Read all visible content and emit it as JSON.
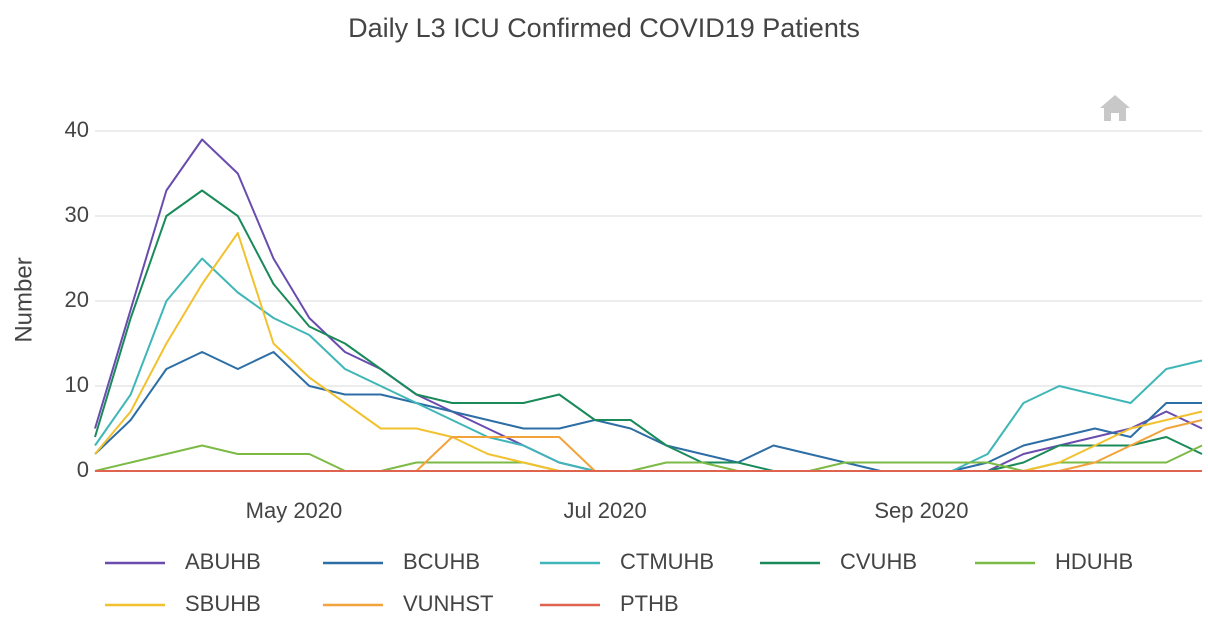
{
  "chart_data": {
    "type": "line",
    "title": "Daily L3 ICU Confirmed COVID19 Patients",
    "y_label": "Number",
    "x": [
      "2020-03-23",
      "2020-03-30",
      "2020-04-06",
      "2020-04-13",
      "2020-04-20",
      "2020-04-27",
      "2020-05-04",
      "2020-05-11",
      "2020-05-18",
      "2020-05-25",
      "2020-06-01",
      "2020-06-08",
      "2020-06-15",
      "2020-06-22",
      "2020-06-29",
      "2020-07-06",
      "2020-07-13",
      "2020-07-20",
      "2020-07-27",
      "2020-08-03",
      "2020-08-10",
      "2020-08-17",
      "2020-08-24",
      "2020-08-31",
      "2020-09-07",
      "2020-09-14",
      "2020-09-21",
      "2020-09-28",
      "2020-10-05",
      "2020-10-12",
      "2020-10-19",
      "2020-10-26"
    ],
    "xlim": [
      "2020-03-23",
      "2020-10-26"
    ],
    "xticks": [
      {
        "value": "2020-05-01",
        "label": "May 2020"
      },
      {
        "value": "2020-07-01",
        "label": "Jul 2020"
      },
      {
        "value": "2020-09-01",
        "label": "Sep 2020"
      }
    ],
    "ylim": [
      0,
      40
    ],
    "yticks": [
      0,
      10,
      20,
      30,
      40
    ],
    "grid": true,
    "series": [
      {
        "name": "ABUHB",
        "color": "#6a4caf",
        "values": [
          5,
          19,
          33,
          39,
          35,
          25,
          18,
          14,
          12,
          9,
          7,
          5,
          3,
          1,
          0,
          0,
          0,
          0,
          0,
          0,
          0,
          0,
          0,
          0,
          0,
          0,
          2,
          3,
          4,
          5,
          7,
          5
        ]
      },
      {
        "name": "BCUHB",
        "color": "#2c6ea5",
        "values": [
          2,
          6,
          12,
          14,
          12,
          14,
          10,
          9,
          9,
          8,
          7,
          6,
          5,
          5,
          6,
          5,
          3,
          2,
          1,
          3,
          2,
          1,
          0,
          0,
          0,
          1,
          3,
          4,
          5,
          4,
          8,
          8
        ]
      },
      {
        "name": "CTMUHB",
        "color": "#3fb6b8",
        "values": [
          3,
          9,
          20,
          25,
          21,
          18,
          16,
          12,
          10,
          8,
          6,
          4,
          3,
          1,
          0,
          0,
          0,
          0,
          0,
          0,
          0,
          0,
          0,
          0,
          0,
          2,
          8,
          10,
          9,
          8,
          12,
          13
        ]
      },
      {
        "name": "CVUHB",
        "color": "#1a8a5a",
        "values": [
          4,
          18,
          30,
          33,
          30,
          22,
          17,
          15,
          12,
          9,
          8,
          8,
          8,
          9,
          6,
          6,
          3,
          1,
          1,
          0,
          0,
          0,
          0,
          0,
          0,
          0,
          1,
          3,
          3,
          3,
          4,
          2
        ]
      },
      {
        "name": "HDUHB",
        "color": "#7cba46",
        "values": [
          0,
          1,
          2,
          3,
          2,
          2,
          2,
          0,
          0,
          1,
          1,
          1,
          1,
          0,
          0,
          0,
          1,
          1,
          0,
          0,
          0,
          1,
          1,
          1,
          1,
          1,
          0,
          1,
          1,
          1,
          1,
          3
        ]
      },
      {
        "name": "SBUHB",
        "color": "#f2c12e",
        "values": [
          2,
          7,
          15,
          22,
          28,
          15,
          11,
          8,
          5,
          5,
          4,
          2,
          1,
          0,
          0,
          0,
          0,
          0,
          0,
          0,
          0,
          0,
          0,
          0,
          0,
          0,
          0,
          1,
          3,
          5,
          6,
          7
        ]
      },
      {
        "name": "VUNHST",
        "color": "#f2a33b",
        "values": [
          0,
          0,
          0,
          0,
          0,
          0,
          0,
          0,
          0,
          0,
          4,
          4,
          4,
          4,
          0,
          0,
          0,
          0,
          0,
          0,
          0,
          0,
          0,
          0,
          0,
          0,
          0,
          0,
          1,
          3,
          5,
          6
        ]
      },
      {
        "name": "PTHB",
        "color": "#e0634f",
        "values": [
          0,
          0,
          0,
          0,
          0,
          0,
          0,
          0,
          0,
          0,
          0,
          0,
          0,
          0,
          0,
          0,
          0,
          0,
          0,
          0,
          0,
          0,
          0,
          0,
          0,
          0,
          0,
          0,
          0,
          0,
          0,
          0
        ]
      }
    ]
  }
}
